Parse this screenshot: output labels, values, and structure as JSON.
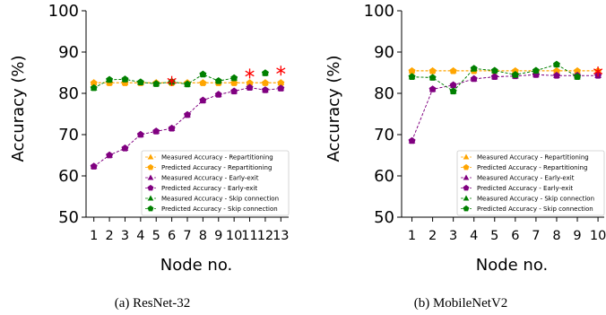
{
  "chart_data": [
    {
      "type": "line",
      "caption": "(a) ResNet-32",
      "xlabel": "Node no.",
      "ylabel": "Accuracy (%)",
      "xlim": [
        0.5,
        13.5
      ],
      "ylim": [
        50,
        100
      ],
      "x": [
        1,
        2,
        3,
        4,
        5,
        6,
        7,
        8,
        9,
        10,
        11,
        12,
        13
      ],
      "yticks": [
        50,
        60,
        70,
        80,
        90,
        100
      ],
      "legend": "lower-right",
      "series": [
        {
          "name": "Measured Accuracy - Repartitioning",
          "marker": "triangle",
          "color": "#ffa500",
          "values": [
            82.6,
            82.6,
            82.6,
            82.6,
            82.6,
            82.6,
            82.6,
            82.6,
            82.6,
            82.6,
            82.6,
            82.6,
            82.6
          ]
        },
        {
          "name": "Predicted Accuracy - Repartitioning",
          "marker": "pentagon",
          "color": "#ffa500",
          "values": [
            82.5,
            82.5,
            82.5,
            82.5,
            82.5,
            82.5,
            82.5,
            82.5,
            82.5,
            82.5,
            82.5,
            82.5,
            82.5
          ]
        },
        {
          "name": "Measured Accuracy - Early-exit",
          "marker": "triangle",
          "color": "#800080",
          "values": [
            62.3,
            65.0,
            66.7,
            70.0,
            70.8,
            71.5,
            74.8,
            78.3,
            79.7,
            80.5,
            81.4,
            80.8,
            81.2
          ]
        },
        {
          "name": "Predicted Accuracy - Early-exit",
          "marker": "pentagon",
          "color": "#800080",
          "values": [
            62.3,
            65.0,
            66.7,
            70.0,
            70.8,
            71.5,
            74.8,
            78.3,
            79.7,
            80.5,
            81.4,
            80.8,
            81.2
          ]
        },
        {
          "name": "Measured Accuracy - Skip connection",
          "marker": "triangle",
          "color": "#008000",
          "values": [
            81.3,
            83.3,
            83.4,
            82.7,
            82.3,
            82.8,
            82.2,
            84.6,
            83.0,
            83.7,
            null,
            84.9,
            null
          ]
        },
        {
          "name": "Predicted Accuracy - Skip connection",
          "marker": "pentagon",
          "color": "#008000",
          "values": [
            81.3,
            83.3,
            83.4,
            82.7,
            82.3,
            82.8,
            82.2,
            84.6,
            83.0,
            83.7,
            null,
            84.9,
            null
          ]
        }
      ],
      "annotations": [
        {
          "x": 6,
          "y": 83.0,
          "marker": "star",
          "color": "#ff0000"
        },
        {
          "x": 11,
          "y": 84.8,
          "marker": "star",
          "color": "#ff0000"
        },
        {
          "x": 13,
          "y": 85.5,
          "marker": "star",
          "color": "#ff0000"
        }
      ]
    },
    {
      "type": "line",
      "caption": "(b) MobileNetV2",
      "xlabel": "Node no.",
      "ylabel": "Accuracy (%)",
      "xlim": [
        0.5,
        10.3
      ],
      "ylim": [
        50,
        100
      ],
      "x": [
        1,
        2,
        3,
        4,
        5,
        6,
        7,
        8,
        9,
        10
      ],
      "yticks": [
        50,
        60,
        70,
        80,
        90,
        100
      ],
      "legend": "lower-right",
      "series": [
        {
          "name": "Measured Accuracy - Repartitioning",
          "marker": "triangle",
          "color": "#ffa500",
          "values": [
            85.5,
            85.5,
            85.5,
            85.5,
            85.5,
            85.5,
            85.5,
            85.5,
            85.5,
            85.5
          ]
        },
        {
          "name": "Predicted Accuracy - Repartitioning",
          "marker": "pentagon",
          "color": "#ffa500",
          "values": [
            85.4,
            85.4,
            85.4,
            85.4,
            85.4,
            85.4,
            85.4,
            85.4,
            85.4,
            85.4
          ]
        },
        {
          "name": "Measured Accuracy - Early-exit",
          "marker": "triangle",
          "color": "#800080",
          "values": [
            68.5,
            81.0,
            82.0,
            83.5,
            84.0,
            84.2,
            84.5,
            84.3,
            84.3,
            84.3
          ]
        },
        {
          "name": "Predicted Accuracy - Early-exit",
          "marker": "pentagon",
          "color": "#800080",
          "values": [
            68.5,
            81.0,
            82.0,
            83.5,
            84.0,
            84.2,
            84.5,
            84.3,
            84.3,
            84.3
          ]
        },
        {
          "name": "Measured Accuracy - Skip connection",
          "marker": "triangle",
          "color": "#008000",
          "values": [
            84.0,
            83.8,
            80.5,
            86.0,
            85.5,
            84.5,
            85.5,
            87.0,
            84.0,
            null
          ]
        },
        {
          "name": "Predicted Accuracy - Skip connection",
          "marker": "pentagon",
          "color": "#008000",
          "values": [
            84.0,
            83.8,
            80.5,
            86.0,
            85.5,
            84.5,
            85.5,
            87.0,
            84.0,
            null
          ]
        }
      ],
      "annotations": [
        {
          "x": 10,
          "y": 85.3,
          "marker": "star",
          "color": "#ff0000"
        }
      ]
    }
  ]
}
